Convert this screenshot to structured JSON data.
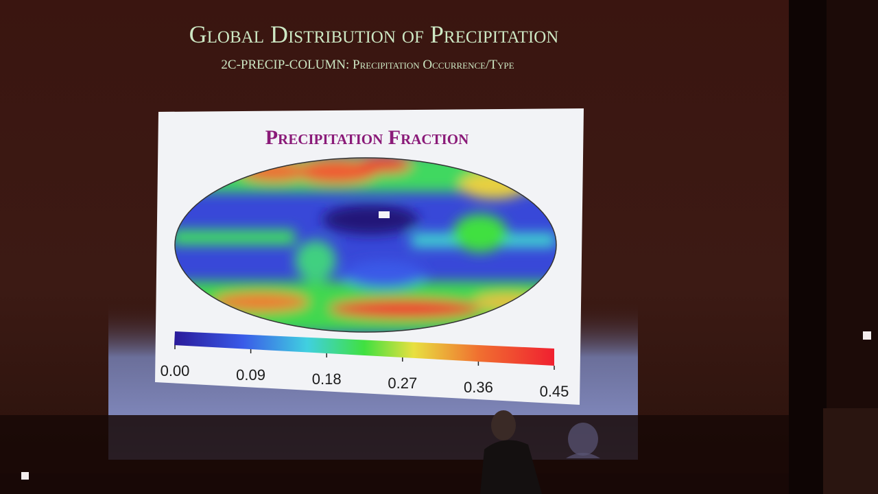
{
  "slide": {
    "title": "Global Distribution of Precipitation",
    "subtitle": "2C-PRECIP-COLUMN: Precipitation Occurrence/Type",
    "figure": {
      "title": "Precipitation Fraction",
      "colorbar_ticks": [
        "0.00",
        "0.09",
        "0.18",
        "0.27",
        "0.36",
        "0.45"
      ]
    }
  }
}
